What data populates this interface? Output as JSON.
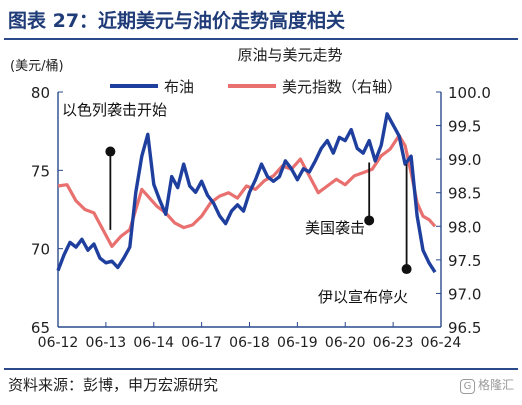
{
  "figure_title": "图表 27：近期美元与油价走势高度相关",
  "source": "资料来源：彭博，申万宏源研究",
  "watermark": "格隆汇",
  "colors": {
    "oil": "#1f3f9e",
    "usd": "#e8706f",
    "frame": "#2a4a8b",
    "title": "#1f3b78"
  },
  "chart_data": {
    "type": "line",
    "title": "原油与美元走势",
    "y_left_unit": "(美元/桶)",
    "ylim_left": [
      65,
      80
    ],
    "yticks_left": [
      65,
      70,
      75,
      80
    ],
    "ylim_right": [
      96.5,
      100.0
    ],
    "yticks_right": [
      "96.5",
      "97.0",
      "97.5",
      "98.0",
      "98.5",
      "99.0",
      "99.5",
      "100.0"
    ],
    "xlim": [
      0,
      12.8
    ],
    "x_ticks": [
      {
        "x": 0,
        "label": "06-12"
      },
      {
        "x": 1,
        "label": "06-13"
      },
      {
        "x": 2,
        "label": "06-14"
      },
      {
        "x": 3,
        "label": "06-17"
      },
      {
        "x": 4,
        "label": "06-18"
      },
      {
        "x": 5,
        "label": "06-19"
      },
      {
        "x": 6,
        "label": "06-20"
      },
      {
        "x": 7,
        "label": "06-23"
      },
      {
        "x": 8,
        "label": "06-24"
      }
    ],
    "series": [
      {
        "name": "布油",
        "axis": "left",
        "color": "#1f3f9e",
        "points": [
          [
            0,
            68.6
          ],
          [
            0.2,
            69.6
          ],
          [
            0.4,
            70.4
          ],
          [
            0.6,
            70.1
          ],
          [
            0.8,
            70.6
          ],
          [
            1.0,
            69.9
          ],
          [
            1.2,
            70.3
          ],
          [
            1.4,
            69.4
          ],
          [
            1.6,
            69.1
          ],
          [
            1.8,
            69.2
          ],
          [
            2.0,
            68.8
          ],
          [
            2.2,
            69.4
          ],
          [
            2.4,
            70.1
          ],
          [
            2.6,
            73.6
          ],
          [
            2.8,
            75.9
          ],
          [
            3.0,
            77.3
          ],
          [
            3.2,
            74.1
          ],
          [
            3.4,
            73.1
          ],
          [
            3.6,
            72.2
          ],
          [
            3.8,
            74.6
          ],
          [
            4.0,
            73.9
          ],
          [
            4.2,
            75.4
          ],
          [
            4.4,
            74.0
          ],
          [
            4.6,
            73.6
          ],
          [
            4.8,
            74.3
          ],
          [
            5.0,
            73.4
          ],
          [
            5.2,
            72.9
          ],
          [
            5.4,
            72.1
          ],
          [
            5.6,
            71.6
          ],
          [
            5.8,
            72.4
          ],
          [
            6.0,
            72.8
          ],
          [
            6.2,
            72.4
          ],
          [
            6.4,
            73.6
          ],
          [
            6.6,
            74.4
          ],
          [
            6.8,
            75.4
          ],
          [
            7.0,
            74.6
          ],
          [
            7.2,
            74.3
          ],
          [
            7.4,
            74.6
          ],
          [
            7.6,
            75.6
          ],
          [
            7.8,
            75.1
          ],
          [
            8.0,
            74.4
          ],
          [
            8.2,
            75.1
          ],
          [
            8.4,
            74.9
          ],
          [
            8.6,
            75.6
          ],
          [
            8.8,
            76.4
          ],
          [
            9.0,
            76.9
          ],
          [
            9.2,
            76.1
          ],
          [
            9.4,
            77.1
          ],
          [
            9.6,
            76.9
          ],
          [
            9.8,
            77.6
          ],
          [
            10.0,
            76.4
          ],
          [
            10.2,
            76.1
          ],
          [
            10.4,
            76.9
          ],
          [
            10.6,
            75.6
          ],
          [
            10.8,
            76.6
          ],
          [
            11.0,
            78.6
          ],
          [
            11.2,
            77.9
          ],
          [
            11.4,
            77.2
          ],
          [
            11.6,
            75.4
          ],
          [
            11.8,
            75.9
          ],
          [
            12.0,
            72.1
          ],
          [
            12.2,
            69.9
          ],
          [
            12.4,
            69.1
          ],
          [
            12.6,
            68.5
          ]
        ]
      },
      {
        "name": "美元指数（右轴）",
        "axis": "right",
        "color": "#e8706f",
        "points": [
          [
            0,
            98.6
          ],
          [
            0.3,
            98.62
          ],
          [
            0.6,
            98.38
          ],
          [
            0.9,
            98.25
          ],
          [
            1.2,
            98.2
          ],
          [
            1.5,
            97.95
          ],
          [
            1.8,
            97.7
          ],
          [
            2.1,
            97.85
          ],
          [
            2.4,
            97.95
          ],
          [
            2.6,
            98.25
          ],
          [
            2.8,
            98.55
          ],
          [
            3.0,
            98.45
          ],
          [
            3.3,
            98.3
          ],
          [
            3.6,
            98.2
          ],
          [
            3.9,
            98.05
          ],
          [
            4.2,
            97.98
          ],
          [
            4.5,
            98.02
          ],
          [
            4.8,
            98.15
          ],
          [
            5.1,
            98.35
          ],
          [
            5.4,
            98.45
          ],
          [
            5.7,
            98.5
          ],
          [
            6.0,
            98.42
          ],
          [
            6.3,
            98.6
          ],
          [
            6.6,
            98.55
          ],
          [
            6.9,
            98.68
          ],
          [
            7.2,
            98.75
          ],
          [
            7.5,
            98.9
          ],
          [
            7.8,
            98.85
          ],
          [
            8.1,
            99.0
          ],
          [
            8.4,
            98.75
          ],
          [
            8.7,
            98.5
          ],
          [
            9.0,
            98.6
          ],
          [
            9.3,
            98.7
          ],
          [
            9.6,
            98.62
          ],
          [
            9.9,
            98.75
          ],
          [
            10.2,
            98.8
          ],
          [
            10.5,
            98.85
          ],
          [
            10.8,
            99.05
          ],
          [
            11.1,
            99.15
          ],
          [
            11.4,
            99.35
          ],
          [
            11.6,
            99.2
          ],
          [
            11.8,
            98.8
          ],
          [
            12.0,
            98.35
          ],
          [
            12.2,
            98.15
          ],
          [
            12.4,
            98.1
          ],
          [
            12.6,
            98.0
          ]
        ]
      }
    ],
    "annotations": [
      {
        "text": "以色列袭击开始",
        "x": 1.75,
        "y_top": 76.2,
        "y_bottom": 71.2
      },
      {
        "text": "美国袭击",
        "x": 10.4,
        "y_top": 75.5,
        "y_bottom": 71.8
      },
      {
        "text": "伊以宣布停火",
        "x": 11.65,
        "y_top": 75.4,
        "y_bottom": 68.7
      }
    ]
  }
}
